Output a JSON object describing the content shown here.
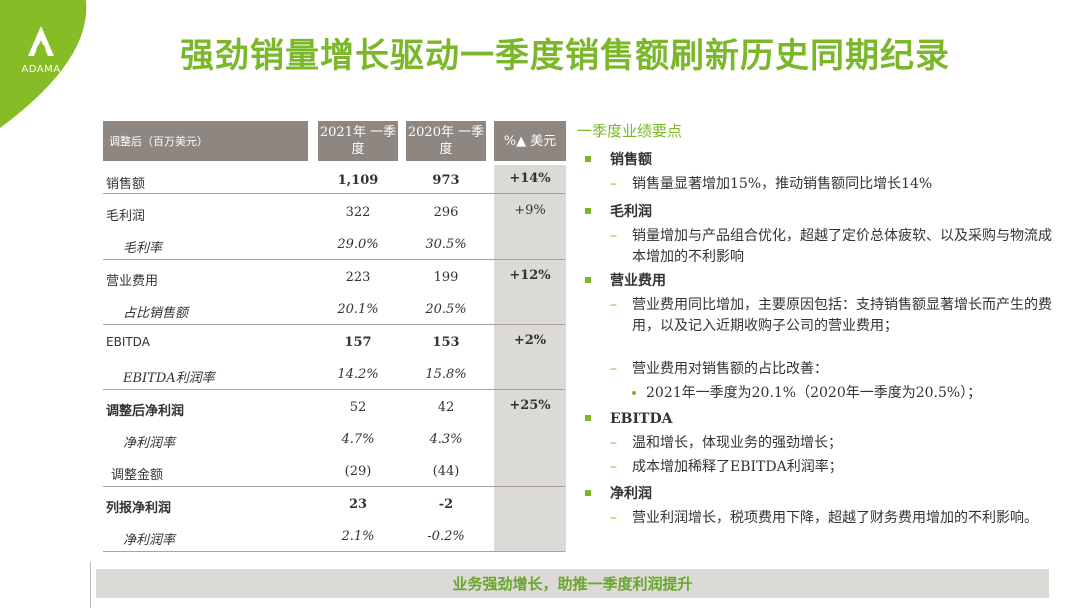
{
  "brand": {
    "name": "ADAMA",
    "accent": "#7ab829",
    "header_gray": "#8e8680",
    "shade_gray": "#dcdad7"
  },
  "title": "强劲销量增长驱动一季度销售额刷新历史同期纪录",
  "table": {
    "headers": {
      "label": "调整后（百万美元）",
      "col1": "2021年 一季度",
      "col2": "2020年 一季度",
      "col3": "%▲ 美元"
    },
    "rows": [
      {
        "label": "销售额",
        "v1": "1,109",
        "v2": "973",
        "v3": "+14%"
      },
      {
        "label": "毛利润",
        "v1": "322",
        "v2": "296",
        "v3": "+9%"
      },
      {
        "label": "毛利率",
        "v1": "29.0%",
        "v2": "30.5%",
        "v3": ""
      },
      {
        "label": "营业费用",
        "v1": "223",
        "v2": "199",
        "v3": "+12%"
      },
      {
        "label": "占比销售额",
        "v1": "20.1%",
        "v2": "20.5%",
        "v3": ""
      },
      {
        "label": "EBITDA",
        "v1": "157",
        "v2": "153",
        "v3": "+2%"
      },
      {
        "label": "EBITDA利润率",
        "v1": "14.2%",
        "v2": "15.8%",
        "v3": ""
      },
      {
        "label": "调整后净利润",
        "v1": "52",
        "v2": "42",
        "v3": "+25%"
      },
      {
        "label": "净利润率",
        "v1": "4.7%",
        "v2": "4.3%",
        "v3": ""
      },
      {
        "label": "调整金额",
        "v1": "(29)",
        "v2": "(44)",
        "v3": ""
      },
      {
        "label": "列报净利润",
        "v1": "23",
        "v2": "-2",
        "v3": ""
      },
      {
        "label": "净利润率",
        "v1": "2.1%",
        "v2": "-0.2%",
        "v3": ""
      }
    ]
  },
  "notes": {
    "heading": "一季度业绩要点",
    "sections": [
      {
        "title": "销售额",
        "items": [
          "销售量显著增加15%，推动销售额同比增长14%"
        ]
      },
      {
        "title": "毛利润",
        "items": [
          "销量增加与产品组合优化，超越了定价总体疲软、以及采购与物流成本增加的不利影响"
        ]
      },
      {
        "title": "营业费用",
        "items": [
          "营业费用同比增加，主要原因包括：支持销售额显著增长而产生的费用，以及记入近期收购子公司的营业费用；",
          "营业费用对销售额的占比改善："
        ],
        "bullet": "2021年一季度为20.1%（2020年一季度为20.5%）；"
      },
      {
        "title": "EBITDA",
        "items": [
          "温和增长，体现业务的强劲增长；",
          "成本增加稀释了EBITDA利润率；"
        ]
      },
      {
        "title": "净利润",
        "items": [
          "营业利润增长，税项费用下降，超越了财务费用增加的不利影响。"
        ]
      }
    ],
    "dash": "–"
  },
  "banner": "业务强劲增长，助推一季度利润提升"
}
